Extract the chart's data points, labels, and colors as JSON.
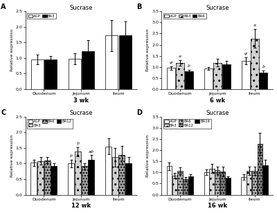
{
  "title": "Sucrase",
  "panels": [
    "A",
    "B",
    "C",
    "D"
  ],
  "xlabels": [
    "3 wk",
    "6 wk",
    "12 wk",
    "16 wk"
  ],
  "locations": [
    "Duodenum",
    "Jejunum",
    "Ileum"
  ],
  "panel_A": {
    "groups": [
      "AGP",
      "BA3"
    ],
    "colors": [
      "white",
      "black"
    ],
    "hatches": [
      "",
      ""
    ],
    "edgecolors": [
      "black",
      "black"
    ],
    "values": [
      [
        0.95,
        0.97,
        1.72
      ],
      [
        0.95,
        1.22,
        1.72
      ]
    ],
    "errors": [
      [
        0.15,
        0.18,
        0.5
      ],
      [
        0.12,
        0.35,
        0.45
      ]
    ],
    "ylim": [
      0.0,
      2.5
    ],
    "yticks": [
      0.0,
      0.5,
      1.0,
      1.5,
      2.0,
      2.5
    ],
    "annotations": [
      [],
      [],
      []
    ]
  },
  "panel_B": {
    "groups": [
      "AGP",
      "BA3",
      "BA6"
    ],
    "colors": [
      "white",
      "#d0d0d0",
      "black"
    ],
    "hatches": [
      "",
      "..",
      ""
    ],
    "edgecolors": [
      "black",
      "black",
      "black"
    ],
    "values": [
      [
        0.95,
        0.93,
        1.27
      ],
      [
        1.18,
        1.18,
        2.28
      ],
      [
        0.8,
        1.13,
        0.75
      ]
    ],
    "errors": [
      [
        0.08,
        0.06,
        0.15
      ],
      [
        0.12,
        0.17,
        0.43
      ],
      [
        0.07,
        0.14,
        0.1
      ]
    ],
    "ylim": [
      0.0,
      3.5
    ],
    "yticks": [
      0.0,
      0.5,
      1.0,
      1.5,
      2.0,
      2.5,
      3.0,
      3.5
    ],
    "annotations": [
      [
        "ψ",
        "a",
        "b"
      ],
      [
        "",
        "",
        ""
      ],
      [
        "ψ",
        "a",
        "b"
      ]
    ]
  },
  "panel_C": {
    "groups": [
      "AGP",
      "BA3",
      "BA6",
      "BA12"
    ],
    "colors": [
      "white",
      "#d0d0d0",
      "#a0a0a0",
      "black"
    ],
    "hatches": [
      "",
      "..",
      "....",
      ""
    ],
    "edgecolors": [
      "black",
      "black",
      "black",
      "black"
    ],
    "values": [
      [
        1.03,
        1.0,
        1.55
      ],
      [
        1.08,
        1.38,
        1.2
      ],
      [
        1.1,
        0.92,
        1.27
      ],
      [
        0.93,
        1.12,
        1.0
      ]
    ],
    "errors": [
      [
        0.1,
        0.12,
        0.25
      ],
      [
        0.12,
        0.15,
        0.3
      ],
      [
        0.1,
        0.1,
        0.3
      ],
      [
        0.07,
        0.15,
        0.22
      ]
    ],
    "ylim": [
      0.0,
      2.5
    ],
    "yticks": [
      0.0,
      0.5,
      1.0,
      1.5,
      2.0,
      2.5
    ],
    "annotations": [
      [],
      [
        "b",
        "b",
        "",
        "ab"
      ],
      []
    ]
  },
  "panel_D": {
    "groups": [
      "AGP",
      "BA3",
      "BA6",
      "BA12",
      "BA16"
    ],
    "colors": [
      "white",
      "#d8d8d8",
      "#b0b0b0",
      "#808080",
      "black"
    ],
    "hatches": [
      "",
      "..",
      "....",
      "....",
      ""
    ],
    "edgecolors": [
      "black",
      "black",
      "black",
      "black",
      "black"
    ],
    "values": [
      [
        1.28,
        1.0,
        0.8
      ],
      [
        0.85,
        1.18,
        1.07
      ],
      [
        1.07,
        1.1,
        1.07
      ],
      [
        0.7,
        1.03,
        2.28
      ],
      [
        0.83,
        0.75,
        1.32
      ]
    ],
    "errors": [
      [
        0.18,
        0.12,
        0.12
      ],
      [
        0.12,
        0.2,
        0.18
      ],
      [
        0.15,
        0.17,
        0.18
      ],
      [
        0.08,
        0.22,
        0.5
      ],
      [
        0.1,
        0.07,
        0.25
      ]
    ],
    "ylim": [
      0.0,
      3.5
    ],
    "yticks": [
      0.0,
      0.5,
      1.0,
      1.5,
      2.0,
      2.5,
      3.0,
      3.5
    ],
    "annotations": [
      [],
      [],
      []
    ]
  }
}
